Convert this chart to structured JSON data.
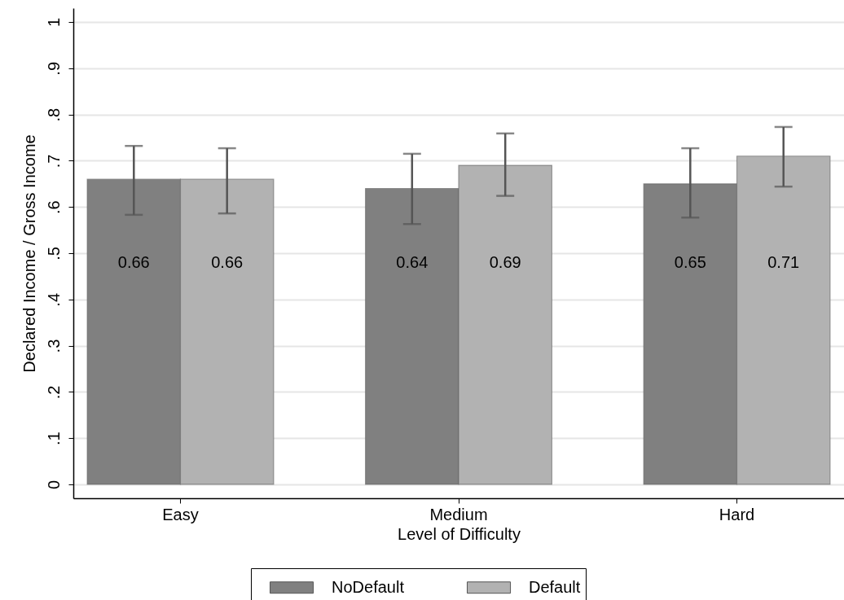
{
  "chart_data": {
    "type": "bar",
    "xlabel": "Level of Difficulty",
    "ylabel": "Declared Income / Gross Income",
    "categories": [
      "Easy",
      "Medium",
      "Hard"
    ],
    "series": [
      {
        "name": "NoDefault",
        "color": "#808080",
        "values": [
          0.66,
          0.64,
          0.65
        ],
        "errors": [
          [
            0.583,
            0.732
          ],
          [
            0.563,
            0.715
          ],
          [
            0.577,
            0.727
          ]
        ]
      },
      {
        "name": "Default",
        "color": "#b2b2b2",
        "values": [
          0.66,
          0.69,
          0.71
        ],
        "errors": [
          [
            0.586,
            0.727
          ],
          [
            0.624,
            0.759
          ],
          [
            0.644,
            0.773
          ]
        ]
      }
    ],
    "ylim": [
      -0.03,
      1.03
    ],
    "yticks": [
      0,
      {
        "value": 0.1,
        "label": ".1"
      },
      {
        "value": 0.2,
        "label": ".2"
      },
      {
        "value": 0.3,
        "label": ".3"
      },
      {
        "value": 0.4,
        "label": ".4"
      },
      {
        "value": 0.5,
        "label": ".5"
      },
      {
        "value": 0.6,
        "label": ".6"
      },
      {
        "value": 0.7,
        "label": ".7"
      },
      {
        "value": 0.8,
        "label": ".8"
      },
      {
        "value": 0.9,
        "label": ".9"
      },
      1
    ],
    "grid": "y",
    "legend": "bottom",
    "data_labels": true
  }
}
